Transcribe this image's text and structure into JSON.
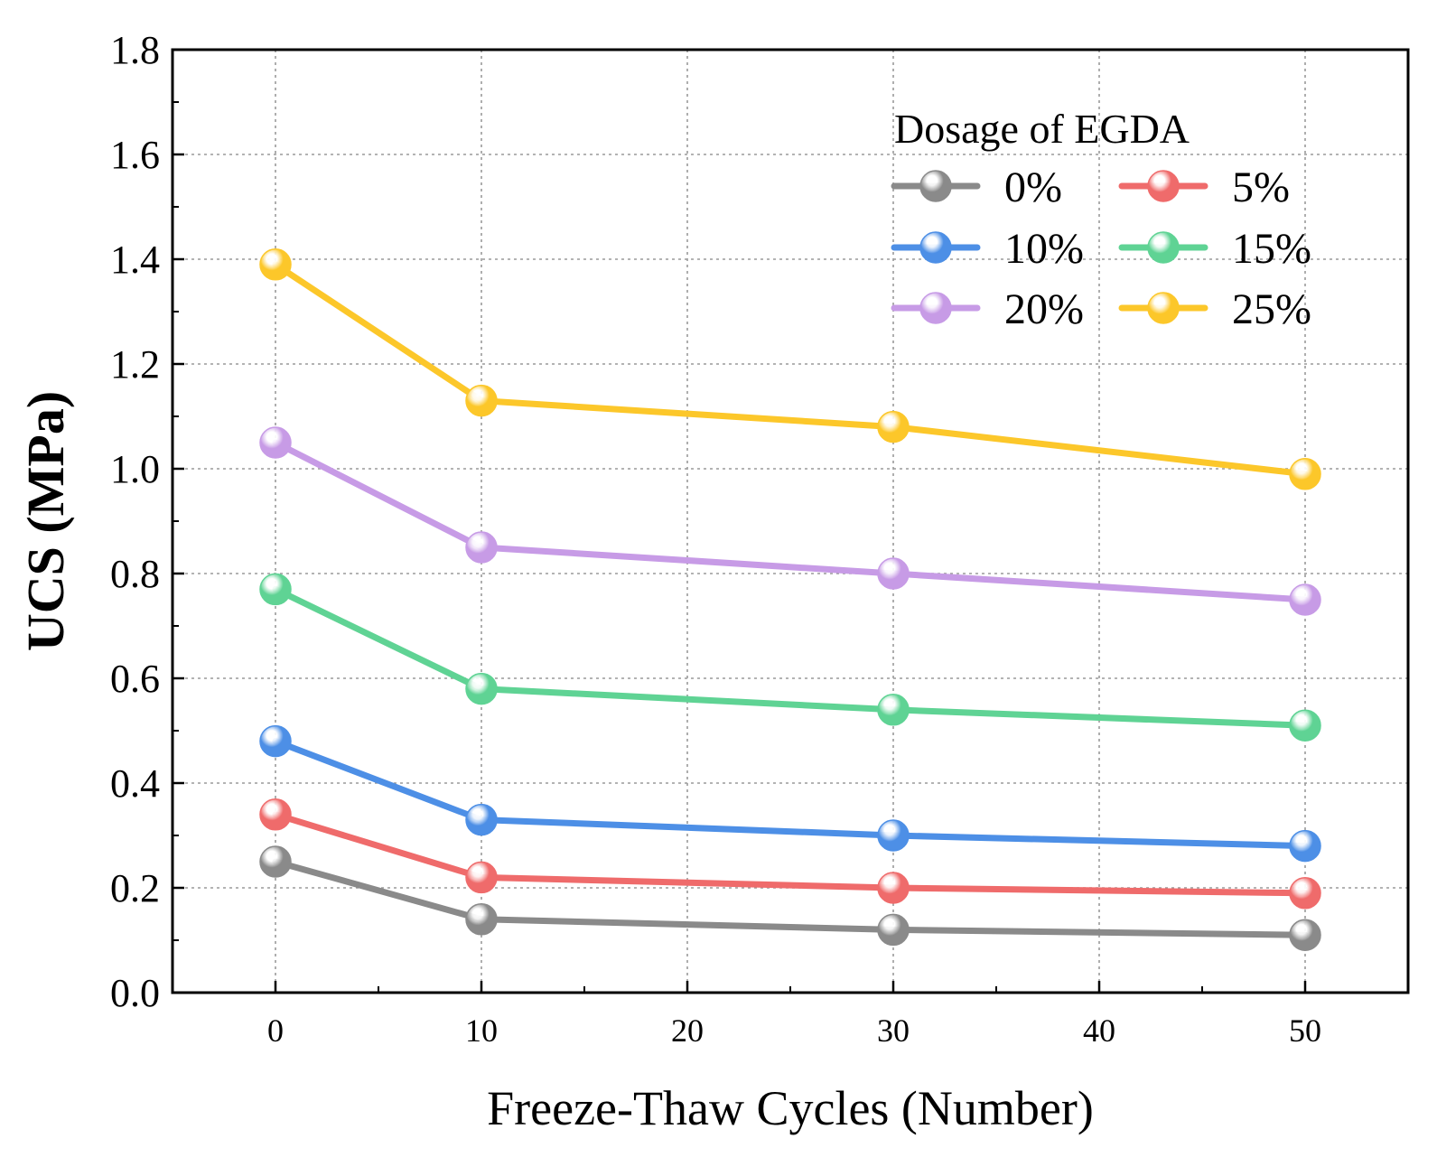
{
  "chart_data": {
    "type": "line",
    "title": "",
    "xlabel": "Freeze-Thaw Cycles (Number)",
    "ylabel": "UCS (MPa)",
    "xlim": [
      -5,
      55
    ],
    "ylim": [
      0,
      1.8
    ],
    "x_ticks": [
      0,
      10,
      20,
      30,
      40,
      50
    ],
    "x_tick_labels": [
      "0",
      "10",
      "20",
      "30",
      "40",
      "50"
    ],
    "y_ticks": [
      0,
      0.2,
      0.4,
      0.6,
      0.8,
      1.0,
      1.2,
      1.4,
      1.6,
      1.8
    ],
    "y_tick_labels": [
      "0.0",
      "0.2",
      "0.4",
      "0.6",
      "0.8",
      "1.0",
      "1.2",
      "1.4",
      "1.6",
      "1.8"
    ],
    "grid": true,
    "legend_title": "Dosage of EGDA",
    "legend_position": "top-right",
    "x": [
      0,
      10,
      30,
      50
    ],
    "series": [
      {
        "name": "0%",
        "color": "#8a8a8a",
        "values": [
          0.25,
          0.14,
          0.12,
          0.11
        ]
      },
      {
        "name": "5%",
        "color": "#ef6b6b",
        "values": [
          0.34,
          0.22,
          0.2,
          0.19
        ]
      },
      {
        "name": "10%",
        "color": "#4d8fe6",
        "values": [
          0.48,
          0.33,
          0.3,
          0.28
        ]
      },
      {
        "name": "15%",
        "color": "#5fd394",
        "values": [
          0.77,
          0.58,
          0.54,
          0.51
        ]
      },
      {
        "name": "20%",
        "color": "#c79be6",
        "values": [
          1.05,
          0.85,
          0.8,
          0.75
        ]
      },
      {
        "name": "25%",
        "color": "#fcc72a",
        "values": [
          1.39,
          1.13,
          1.08,
          0.99
        ]
      }
    ]
  }
}
